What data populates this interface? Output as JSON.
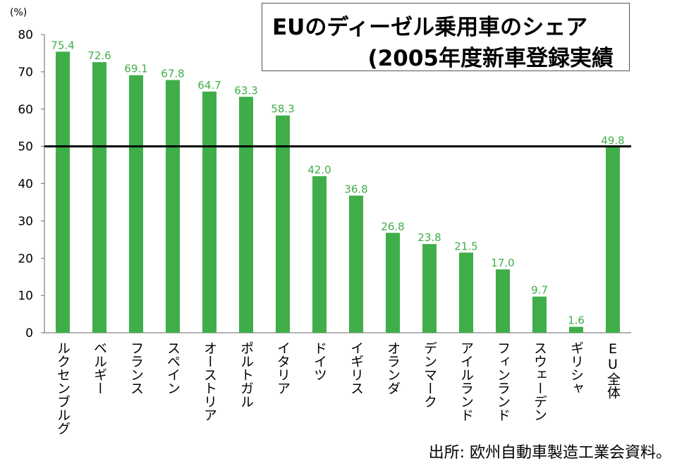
{
  "title": {
    "line1": "EUのディーゼル乗用車のシェア",
    "line2": "(2005年度新車登録実績"
  },
  "source": "出所: 欧州自動車製造工業会資料。",
  "chart_data": {
    "type": "bar",
    "title": "EUのディーゼル乗用車のシェア (2005年度新車登録実績",
    "unit_label": "(%)",
    "categories": [
      "ルクセンブルグ",
      "ベルギー",
      "フランス",
      "スペイン",
      "オーストリア",
      "ポルトガル",
      "イタリア",
      "ドイツ",
      "イギリス",
      "オランダ",
      "デンマーク",
      "アイルランド",
      "フィンランド",
      "スウェーデン",
      "ギリシャ",
      "EU全体"
    ],
    "values": [
      75.4,
      72.6,
      69.1,
      67.8,
      64.7,
      63.3,
      58.3,
      42.0,
      36.8,
      26.8,
      23.8,
      21.5,
      17.0,
      9.7,
      1.6,
      49.8
    ],
    "value_labels": [
      "75.4",
      "72.6",
      "69.1",
      "67.8",
      "64.7",
      "63.3",
      "58.3",
      "42.0",
      "36.8",
      "26.8",
      "23.8",
      "21.5",
      "17.0",
      "9.7",
      "1.6",
      "49.8"
    ],
    "ylim": [
      0,
      80
    ],
    "yticks": [
      0,
      10,
      20,
      30,
      40,
      50,
      60,
      70,
      80
    ],
    "reference_line": 50,
    "bar_color": "#3fae49",
    "label_color": "#3fae49",
    "grid": false
  }
}
